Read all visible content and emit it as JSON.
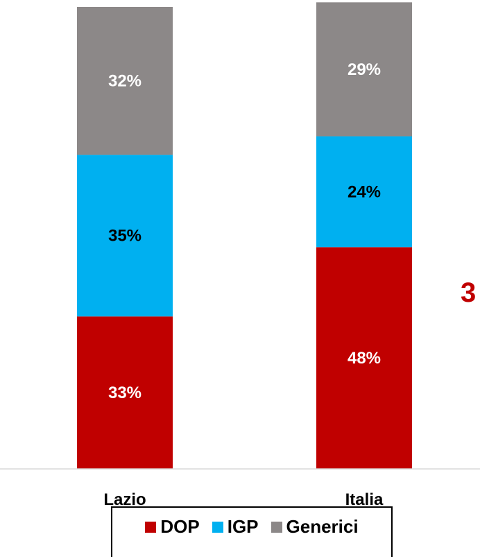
{
  "chart_data": {
    "type": "bar",
    "stacked": true,
    "categories": [
      "Lazio",
      "Italia"
    ],
    "series": [
      {
        "name": "DOP",
        "values": [
          33,
          48
        ],
        "labels": [
          "33%",
          "48%"
        ],
        "color": "#c00000",
        "label_color": "#ffffff"
      },
      {
        "name": "IGP",
        "values": [
          35,
          24
        ],
        "labels": [
          "35%",
          "24%"
        ],
        "color": "#00b0f0",
        "label_color": "#000000"
      },
      {
        "name": "Generici",
        "values": [
          32,
          29
        ],
        "labels": [
          "32%",
          "29%"
        ],
        "color": "#8c8888",
        "label_color": "#ffffff"
      }
    ],
    "unit": "%",
    "ylim": [
      0,
      100
    ],
    "grid": false,
    "legend_position": "bottom"
  },
  "side_text": "3"
}
